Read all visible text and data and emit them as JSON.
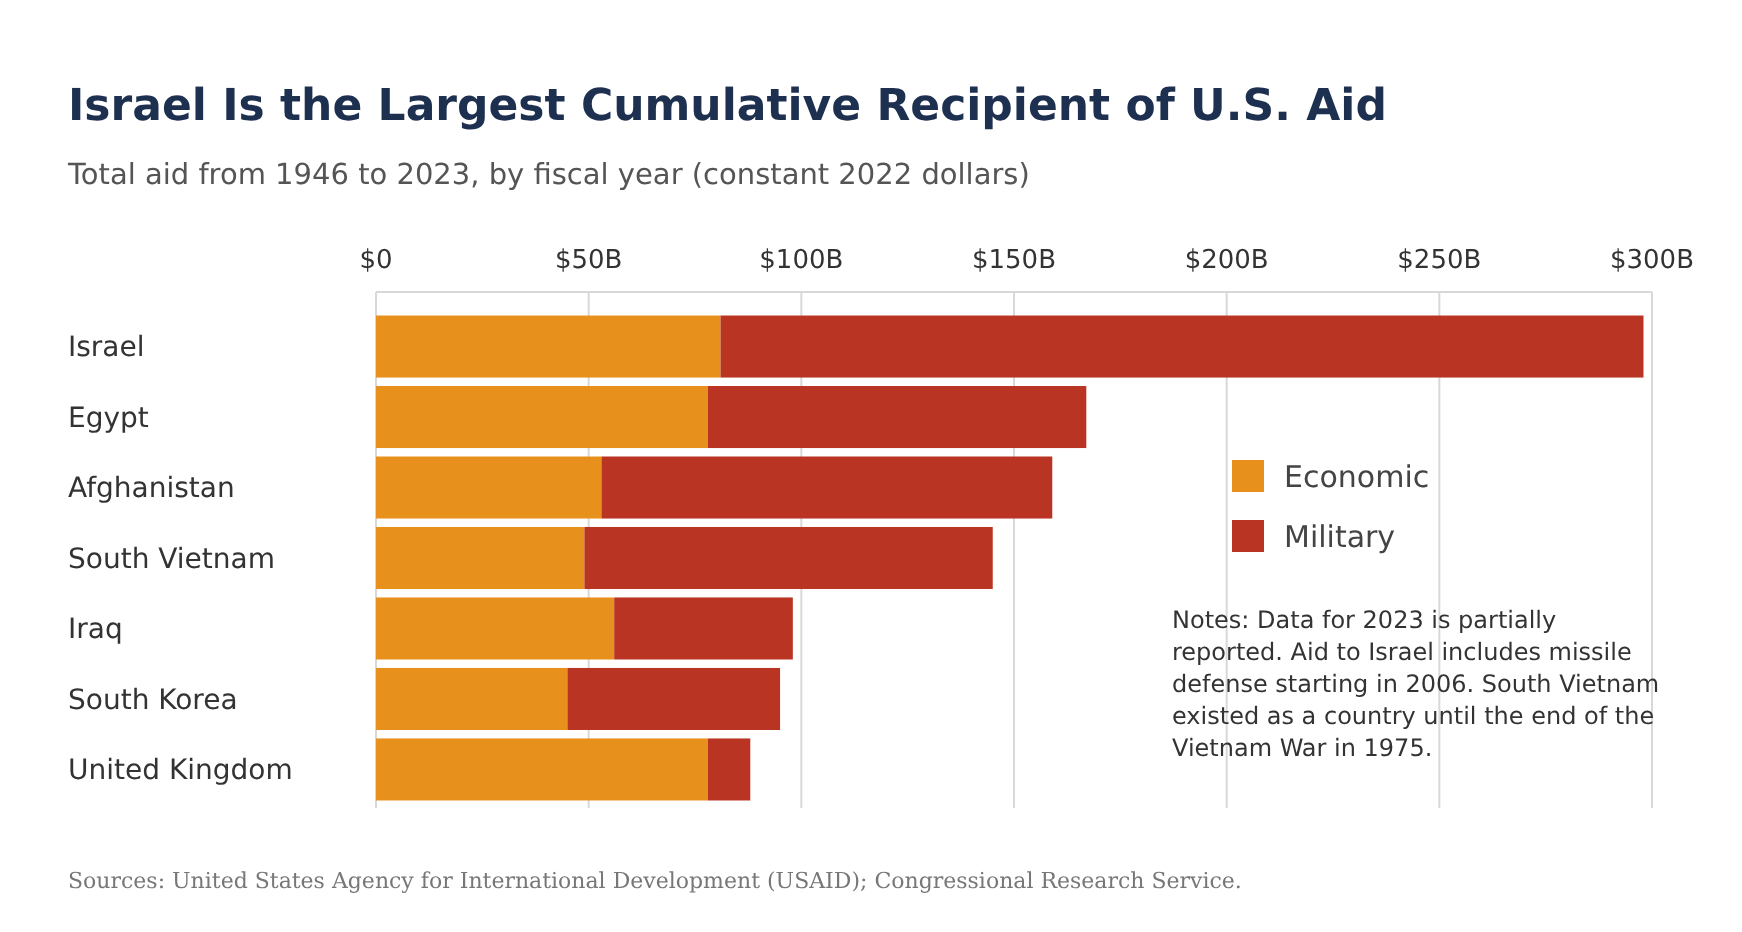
{
  "chart_data": {
    "type": "bar",
    "orientation": "horizontal",
    "stacked": true,
    "title": "Israel Is the Largest Cumulative Recipient of U.S. Aid",
    "subtitle": "Total aid from 1946 to 2023, by fiscal year (constant 2022 dollars)",
    "categories": [
      "Israel",
      "Egypt",
      "Afghanistan",
      "South Vietnam",
      "Iraq",
      "South Korea",
      "United Kingdom"
    ],
    "series": [
      {
        "name": "Economic",
        "color": "#e8901c",
        "values": [
          81,
          78,
          53,
          49,
          56,
          45,
          78
        ]
      },
      {
        "name": "Military",
        "color": "#b93423",
        "values": [
          217,
          89,
          106,
          96,
          42,
          50,
          10
        ]
      }
    ],
    "xlim": [
      0,
      300
    ],
    "xticks": [
      {
        "value": 0,
        "label": "$0"
      },
      {
        "value": 50,
        "label": "$50B"
      },
      {
        "value": 100,
        "label": "$100B"
      },
      {
        "value": 150,
        "label": "$150B"
      },
      {
        "value": 200,
        "label": "$200B"
      },
      {
        "value": 250,
        "label": "$250B"
      },
      {
        "value": 300,
        "label": "$300B"
      }
    ],
    "grid": "x",
    "legend": "right",
    "annotations": [
      "Notes: Data for 2023 is partially reported. Aid to Israel includes missile defense starting in 2006. South Vietnam existed as a country until the end of the Vietnam War in 1975.",
      "Sources: United States Agency for International Development (USAID); Congressional Research Service."
    ]
  }
}
